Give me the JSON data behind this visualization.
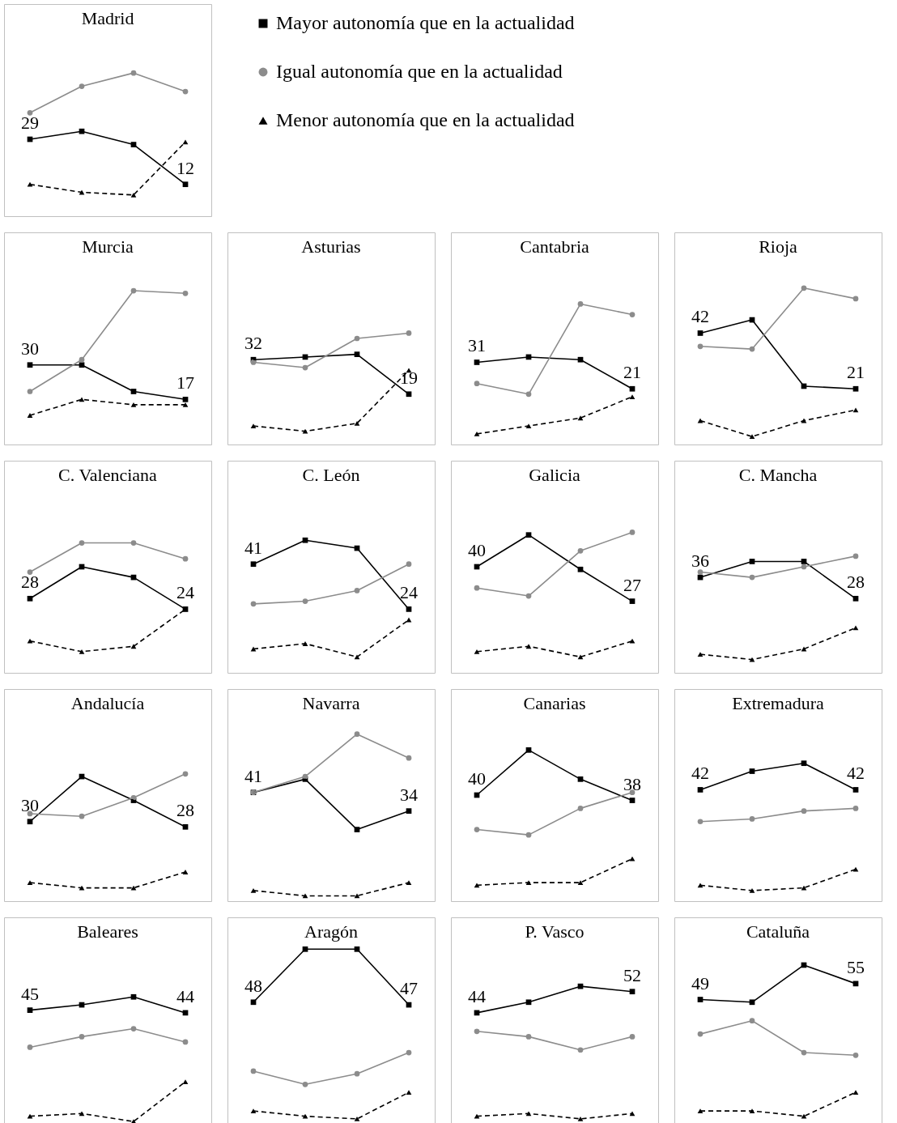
{
  "chart_data": [
    {
      "type": "line",
      "title": "Madrid",
      "categories": [
        null,
        null,
        null,
        null
      ],
      "ylim": [
        0,
        80
      ],
      "tick_labels": false,
      "legend": "right",
      "series": [
        {
          "name": "Mayor autonomía que en la actualidad",
          "color": "#000000",
          "marker": "square",
          "line_style": "solid",
          "values": [
            29,
            32,
            27,
            12
          ],
          "value_labels": [
            "29",
            null,
            null,
            "12"
          ]
        },
        {
          "name": "Igual autonomía que en la actualidad",
          "color": "#8c8c8c",
          "marker": "circle",
          "line_style": "solid",
          "values": [
            39,
            49,
            54,
            47
          ]
        },
        {
          "name": "Menor autonomía que en la actualidad",
          "color": "#000000",
          "marker": "triangle",
          "line_style": "dashed",
          "values": [
            12,
            9,
            8,
            28
          ]
        }
      ]
    },
    {
      "type": "line",
      "title": "Murcia",
      "categories": [
        null,
        null,
        null,
        null
      ],
      "ylim": [
        0,
        80
      ],
      "tick_labels": false,
      "series": [
        {
          "color": "#000000",
          "marker": "square",
          "line_style": "solid",
          "values": [
            30,
            30,
            20,
            17
          ],
          "value_labels": [
            "30",
            null,
            null,
            "17"
          ]
        },
        {
          "color": "#8c8c8c",
          "marker": "circle",
          "line_style": "solid",
          "values": [
            20,
            32,
            58,
            57
          ]
        },
        {
          "color": "#000000",
          "marker": "triangle",
          "line_style": "dashed",
          "values": [
            11,
            17,
            15,
            15
          ]
        }
      ]
    },
    {
      "type": "line",
      "title": "Asturias",
      "categories": [
        null,
        null,
        null,
        null
      ],
      "ylim": [
        0,
        80
      ],
      "tick_labels": false,
      "series": [
        {
          "color": "#000000",
          "marker": "square",
          "line_style": "solid",
          "values": [
            32,
            33,
            34,
            19
          ],
          "value_labels": [
            "32",
            null,
            null,
            "19"
          ]
        },
        {
          "color": "#8c8c8c",
          "marker": "circle",
          "line_style": "solid",
          "values": [
            31,
            29,
            40,
            42
          ]
        },
        {
          "color": "#000000",
          "marker": "triangle",
          "line_style": "dashed",
          "values": [
            7,
            5,
            8,
            28
          ]
        }
      ]
    },
    {
      "type": "line",
      "title": "Cantabria",
      "categories": [
        null,
        null,
        null,
        null
      ],
      "ylim": [
        0,
        80
      ],
      "tick_labels": false,
      "series": [
        {
          "color": "#000000",
          "marker": "square",
          "line_style": "solid",
          "values": [
            31,
            33,
            32,
            21
          ],
          "value_labels": [
            "31",
            null,
            null,
            "21"
          ]
        },
        {
          "color": "#8c8c8c",
          "marker": "circle",
          "line_style": "solid",
          "values": [
            23,
            19,
            53,
            49
          ]
        },
        {
          "color": "#000000",
          "marker": "triangle",
          "line_style": "dashed",
          "values": [
            4,
            7,
            10,
            18
          ]
        }
      ]
    },
    {
      "type": "line",
      "title": "Rioja",
      "categories": [
        null,
        null,
        null,
        null
      ],
      "ylim": [
        0,
        80
      ],
      "tick_labels": false,
      "series": [
        {
          "color": "#000000",
          "marker": "square",
          "line_style": "solid",
          "values": [
            42,
            47,
            22,
            21
          ],
          "value_labels": [
            "42",
            null,
            null,
            "21"
          ]
        },
        {
          "color": "#8c8c8c",
          "marker": "circle",
          "line_style": "solid",
          "values": [
            37,
            36,
            59,
            55
          ]
        },
        {
          "color": "#000000",
          "marker": "triangle",
          "line_style": "dashed",
          "values": [
            9,
            3,
            9,
            13
          ]
        }
      ]
    },
    {
      "type": "line",
      "title": "C. Valenciana",
      "categories": [
        null,
        null,
        null,
        null
      ],
      "ylim": [
        0,
        80
      ],
      "tick_labels": false,
      "series": [
        {
          "color": "#000000",
          "marker": "square",
          "line_style": "solid",
          "values": [
            28,
            40,
            36,
            24
          ],
          "value_labels": [
            "28",
            null,
            null,
            "24"
          ]
        },
        {
          "color": "#8c8c8c",
          "marker": "circle",
          "line_style": "solid",
          "values": [
            38,
            49,
            49,
            43
          ]
        },
        {
          "color": "#000000",
          "marker": "triangle",
          "line_style": "dashed",
          "values": [
            12,
            8,
            10,
            24
          ]
        }
      ]
    },
    {
      "type": "line",
      "title": "C. León",
      "categories": [
        null,
        null,
        null,
        null
      ],
      "ylim": [
        0,
        80
      ],
      "tick_labels": false,
      "series": [
        {
          "color": "#000000",
          "marker": "square",
          "line_style": "solid",
          "values": [
            41,
            50,
            47,
            24
          ],
          "value_labels": [
            "41",
            null,
            null,
            "24"
          ]
        },
        {
          "color": "#8c8c8c",
          "marker": "circle",
          "line_style": "solid",
          "values": [
            26,
            27,
            31,
            41
          ]
        },
        {
          "color": "#000000",
          "marker": "triangle",
          "line_style": "dashed",
          "values": [
            9,
            11,
            6,
            20
          ]
        }
      ]
    },
    {
      "type": "line",
      "title": "Galicia",
      "categories": [
        null,
        null,
        null,
        null
      ],
      "ylim": [
        0,
        80
      ],
      "tick_labels": false,
      "series": [
        {
          "color": "#000000",
          "marker": "square",
          "line_style": "solid",
          "values": [
            40,
            52,
            39,
            27
          ],
          "value_labels": [
            "40",
            null,
            null,
            "27"
          ]
        },
        {
          "color": "#8c8c8c",
          "marker": "circle",
          "line_style": "solid",
          "values": [
            32,
            29,
            46,
            53
          ]
        },
        {
          "color": "#000000",
          "marker": "triangle",
          "line_style": "dashed",
          "values": [
            8,
            10,
            6,
            12
          ]
        }
      ]
    },
    {
      "type": "line",
      "title": "C. Mancha",
      "categories": [
        null,
        null,
        null,
        null
      ],
      "ylim": [
        0,
        80
      ],
      "tick_labels": false,
      "series": [
        {
          "color": "#000000",
          "marker": "square",
          "line_style": "solid",
          "values": [
            36,
            42,
            42,
            28
          ],
          "value_labels": [
            "36",
            null,
            null,
            "28"
          ]
        },
        {
          "color": "#8c8c8c",
          "marker": "circle",
          "line_style": "solid",
          "values": [
            38,
            36,
            40,
            44
          ]
        },
        {
          "color": "#000000",
          "marker": "triangle",
          "line_style": "dashed",
          "values": [
            7,
            5,
            9,
            17
          ]
        }
      ]
    },
    {
      "type": "line",
      "title": "Andalucía",
      "categories": [
        null,
        null,
        null,
        null
      ],
      "ylim": [
        0,
        80
      ],
      "tick_labels": false,
      "series": [
        {
          "color": "#000000",
          "marker": "square",
          "line_style": "solid",
          "values": [
            30,
            47,
            38,
            28
          ],
          "value_labels": [
            "30",
            null,
            null,
            "28"
          ]
        },
        {
          "color": "#8c8c8c",
          "marker": "circle",
          "line_style": "solid",
          "values": [
            33,
            32,
            39,
            48
          ]
        },
        {
          "color": "#000000",
          "marker": "triangle",
          "line_style": "dashed",
          "values": [
            7,
            5,
            5,
            11
          ]
        }
      ]
    },
    {
      "type": "line",
      "title": "Navarra",
      "categories": [
        null,
        null,
        null,
        null
      ],
      "ylim": [
        0,
        80
      ],
      "tick_labels": false,
      "series": [
        {
          "color": "#000000",
          "marker": "square",
          "line_style": "solid",
          "values": [
            41,
            46,
            27,
            34
          ],
          "value_labels": [
            "41",
            null,
            null,
            "34"
          ]
        },
        {
          "color": "#8c8c8c",
          "marker": "circle",
          "line_style": "solid",
          "values": [
            41,
            47,
            63,
            54
          ]
        },
        {
          "color": "#000000",
          "marker": "triangle",
          "line_style": "dashed",
          "values": [
            4,
            2,
            2,
            7
          ]
        }
      ]
    },
    {
      "type": "line",
      "title": "Canarias",
      "categories": [
        null,
        null,
        null,
        null
      ],
      "ylim": [
        0,
        80
      ],
      "tick_labels": false,
      "series": [
        {
          "color": "#000000",
          "marker": "square",
          "line_style": "solid",
          "values": [
            40,
            57,
            46,
            38
          ],
          "value_labels": [
            "40",
            null,
            null,
            "38"
          ]
        },
        {
          "color": "#8c8c8c",
          "marker": "circle",
          "line_style": "solid",
          "values": [
            27,
            25,
            35,
            41
          ]
        },
        {
          "color": "#000000",
          "marker": "triangle",
          "line_style": "dashed",
          "values": [
            6,
            7,
            7,
            16
          ]
        }
      ]
    },
    {
      "type": "line",
      "title": "Extremadura",
      "categories": [
        null,
        null,
        null,
        null
      ],
      "ylim": [
        0,
        80
      ],
      "tick_labels": false,
      "series": [
        {
          "color": "#000000",
          "marker": "square",
          "line_style": "solid",
          "values": [
            42,
            49,
            52,
            42
          ],
          "value_labels": [
            "42",
            null,
            null,
            "42"
          ]
        },
        {
          "color": "#8c8c8c",
          "marker": "circle",
          "line_style": "solid",
          "values": [
            30,
            31,
            34,
            35
          ]
        },
        {
          "color": "#000000",
          "marker": "triangle",
          "line_style": "dashed",
          "values": [
            6,
            4,
            5,
            12
          ]
        }
      ]
    },
    {
      "type": "line",
      "title": "Baleares",
      "categories": [
        null,
        null,
        null,
        null
      ],
      "ylim": [
        0,
        80
      ],
      "tick_labels": false,
      "series": [
        {
          "color": "#000000",
          "marker": "square",
          "line_style": "solid",
          "values": [
            45,
            47,
            50,
            44
          ],
          "value_labels": [
            "45",
            null,
            null,
            "44"
          ]
        },
        {
          "color": "#8c8c8c",
          "marker": "circle",
          "line_style": "solid",
          "values": [
            31,
            35,
            38,
            33
          ]
        },
        {
          "color": "#000000",
          "marker": "triangle",
          "line_style": "dashed",
          "values": [
            5,
            6,
            3,
            18
          ]
        }
      ]
    },
    {
      "type": "line",
      "title": "Aragón",
      "categories": [
        null,
        null,
        null,
        null
      ],
      "ylim": [
        0,
        80
      ],
      "tick_labels": false,
      "series": [
        {
          "color": "#000000",
          "marker": "square",
          "line_style": "solid",
          "values": [
            48,
            68,
            68,
            47
          ],
          "value_labels": [
            "48",
            null,
            null,
            "47"
          ]
        },
        {
          "color": "#8c8c8c",
          "marker": "circle",
          "line_style": "solid",
          "values": [
            22,
            17,
            21,
            29
          ]
        },
        {
          "color": "#000000",
          "marker": "triangle",
          "line_style": "dashed",
          "values": [
            7,
            5,
            4,
            14
          ]
        }
      ]
    },
    {
      "type": "line",
      "title": "P. Vasco",
      "categories": [
        null,
        null,
        null,
        null
      ],
      "ylim": [
        0,
        80
      ],
      "tick_labels": false,
      "series": [
        {
          "color": "#000000",
          "marker": "square",
          "line_style": "solid",
          "values": [
            44,
            48,
            54,
            52
          ],
          "value_labels": [
            "44",
            null,
            null,
            "52"
          ]
        },
        {
          "color": "#8c8c8c",
          "marker": "circle",
          "line_style": "solid",
          "values": [
            37,
            35,
            30,
            35
          ]
        },
        {
          "color": "#000000",
          "marker": "triangle",
          "line_style": "dashed",
          "values": [
            5,
            6,
            4,
            6
          ]
        }
      ]
    },
    {
      "type": "line",
      "title": "Cataluña",
      "categories": [
        null,
        null,
        null,
        null
      ],
      "ylim": [
        0,
        80
      ],
      "tick_labels": false,
      "series": [
        {
          "color": "#000000",
          "marker": "square",
          "line_style": "solid",
          "values": [
            49,
            48,
            62,
            55
          ],
          "value_labels": [
            "49",
            null,
            null,
            "55"
          ]
        },
        {
          "color": "#8c8c8c",
          "marker": "circle",
          "line_style": "solid",
          "values": [
            36,
            41,
            29,
            28
          ]
        },
        {
          "color": "#000000",
          "marker": "triangle",
          "line_style": "dashed",
          "values": [
            7,
            7,
            5,
            14
          ]
        }
      ]
    }
  ]
}
